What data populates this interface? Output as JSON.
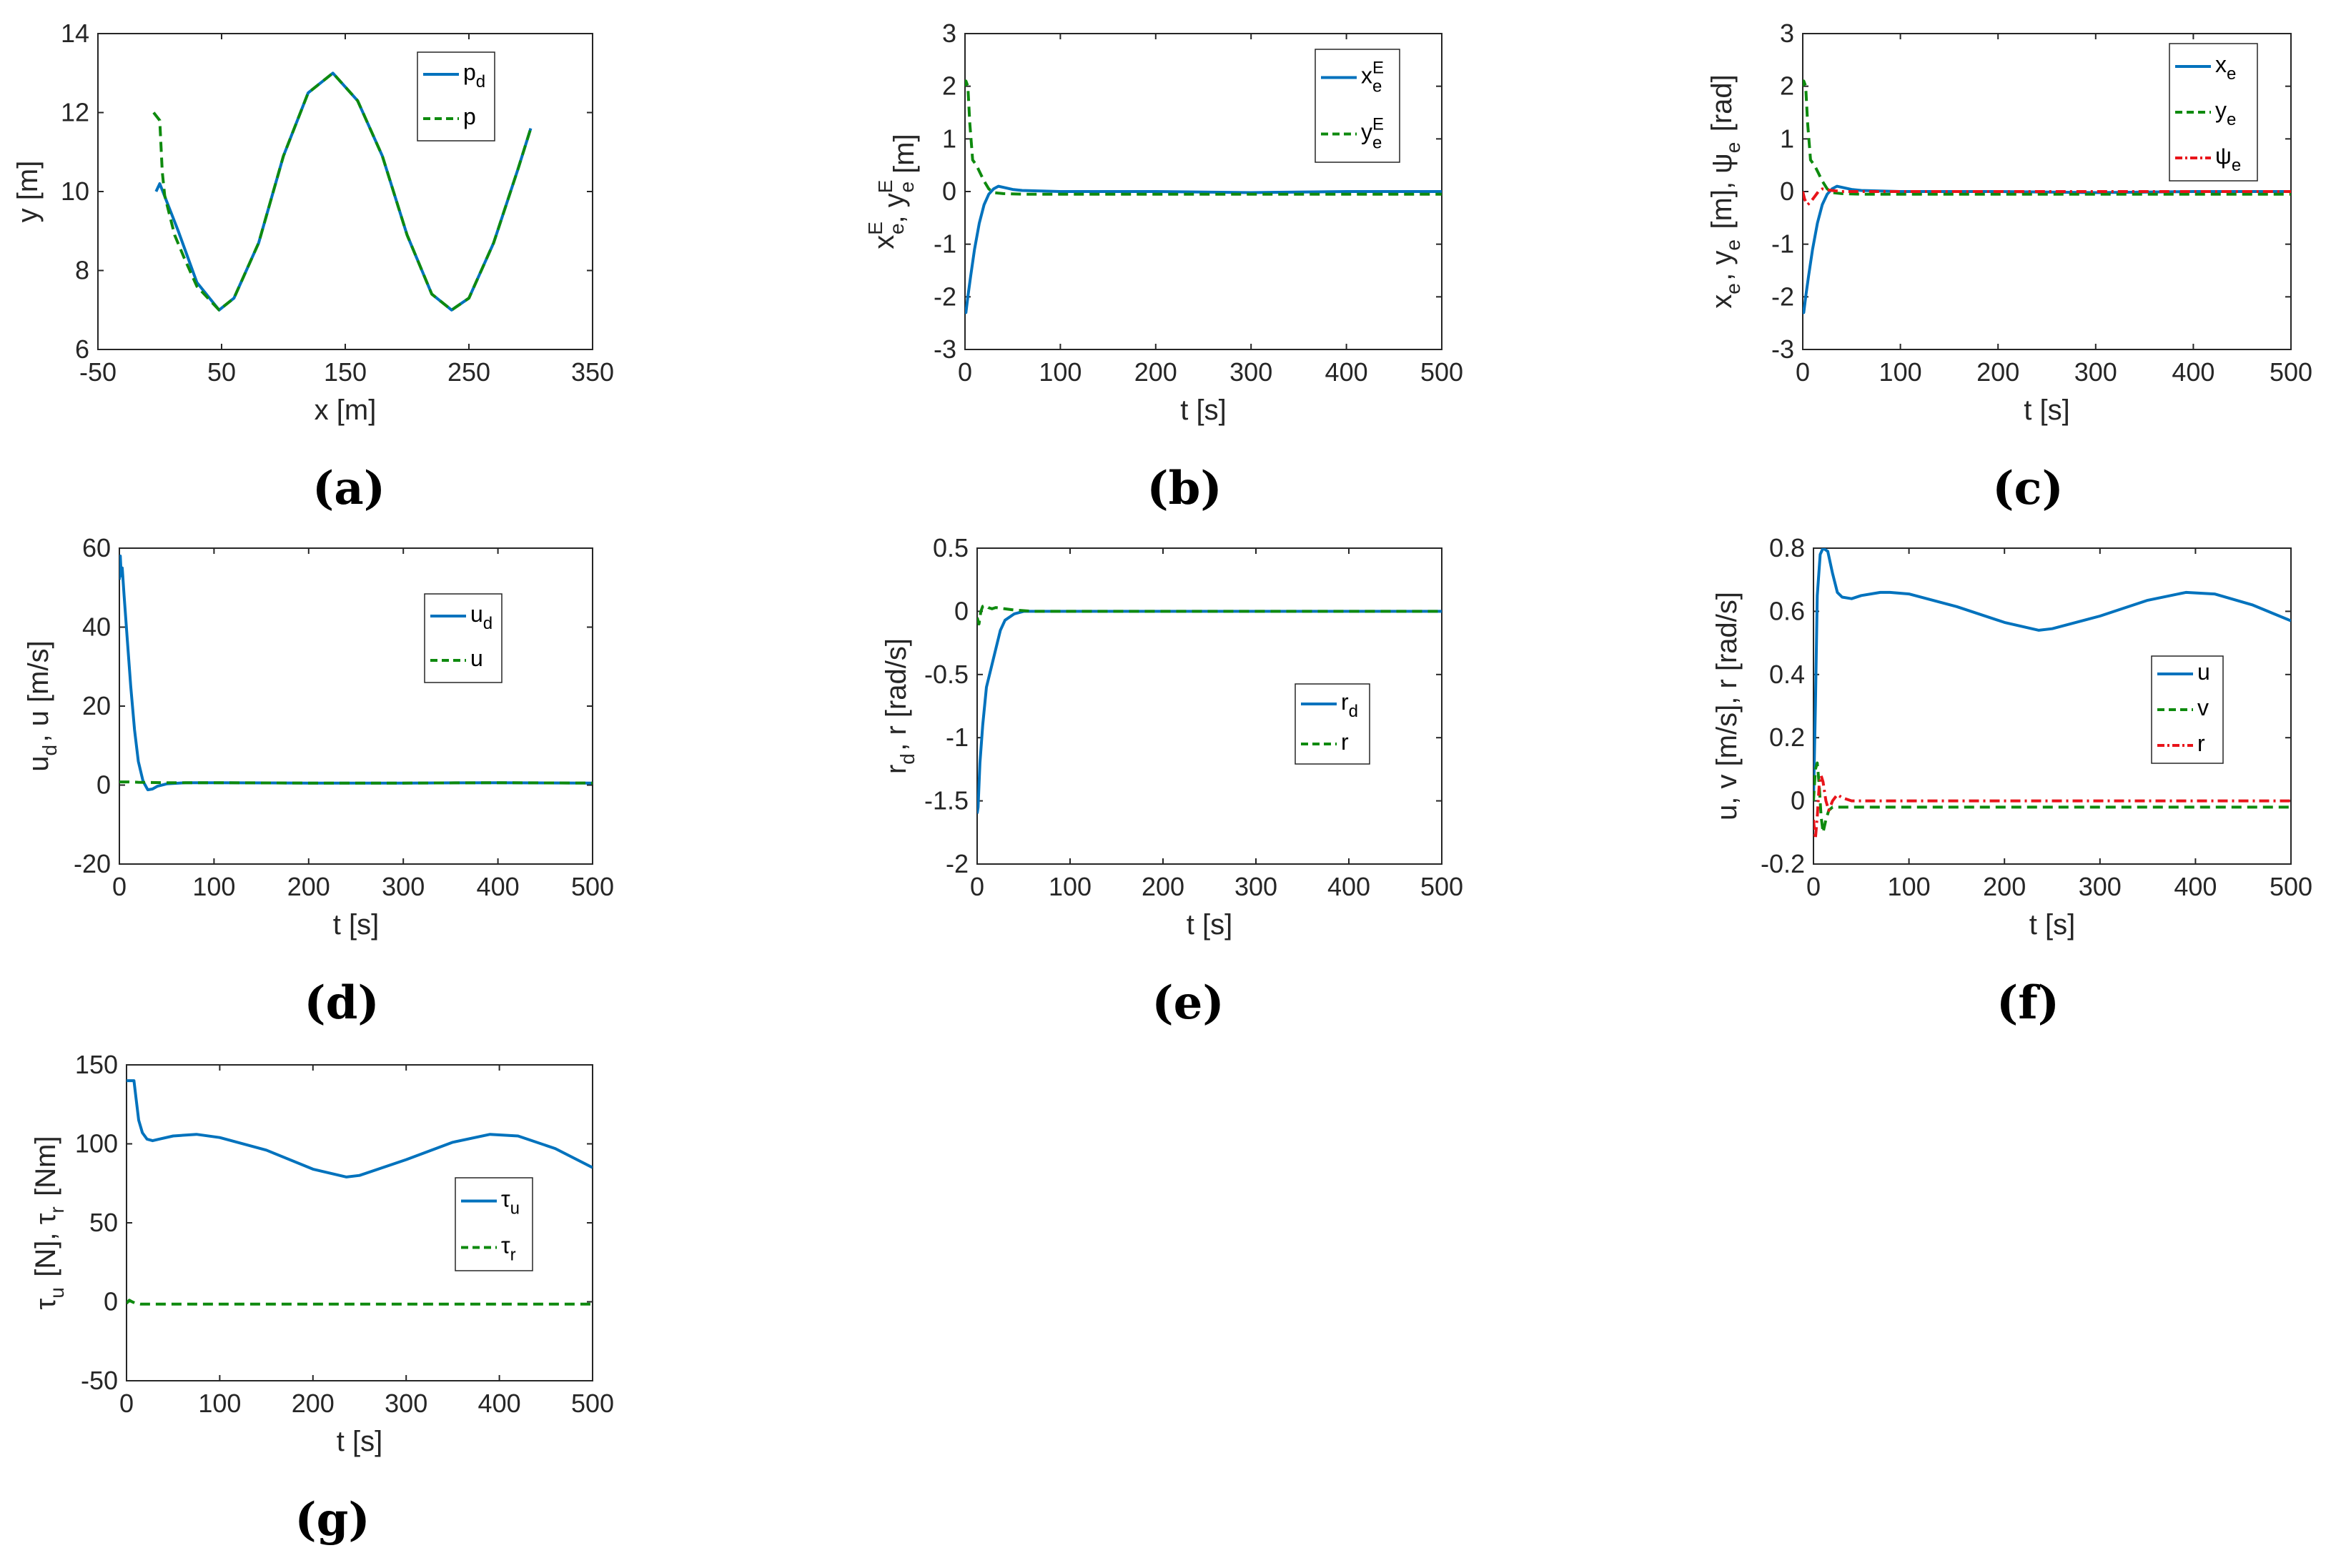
{
  "figure": {
    "panel_letters": [
      "(a)",
      "(b)",
      "(c)",
      "(d)",
      "(e)",
      "(f)",
      "(g)"
    ]
  },
  "colors": {
    "blue": "#0072BD",
    "green": "#0E8A0E",
    "red": "#E8141A",
    "axis": "#262626"
  },
  "chart_data": [
    {
      "id": "a",
      "type": "line",
      "letter": "(a)",
      "xlabel": "x [m]",
      "ylabel": "y [m]",
      "xlim": [
        -50,
        350
      ],
      "ylim": [
        6,
        14
      ],
      "xticks": [
        -50,
        50,
        150,
        250,
        350
      ],
      "xtick_labels": [
        "-50",
        "50",
        "150",
        "250",
        "350"
      ],
      "yticks": [
        6,
        8,
        10,
        12,
        14
      ],
      "ytick_labels": [
        "6",
        "8",
        "10",
        "12",
        "14"
      ],
      "legend_position": "top-right",
      "series": [
        {
          "name": "p_d",
          "legend_main": "p",
          "legend_sub": "d",
          "style": "solid",
          "color": "blue",
          "x": [
            -3,
            0,
            15,
            30,
            48,
            60,
            80,
            100,
            120,
            140,
            160,
            180,
            200,
            220,
            236,
            250,
            270,
            290,
            300
          ],
          "y": [
            10.0,
            10.2,
            9.0,
            7.7,
            7.0,
            7.3,
            8.7,
            10.9,
            12.5,
            13.0,
            12.3,
            10.9,
            8.9,
            7.4,
            7.0,
            7.3,
            8.7,
            10.6,
            11.6
          ]
        },
        {
          "name": "p",
          "legend_main": "p",
          "legend_sub": "",
          "style": "dashed",
          "color": "green",
          "x": [
            -5,
            0,
            2,
            4,
            8,
            12,
            20,
            30,
            48,
            60,
            80,
            100,
            120,
            140,
            160,
            180,
            200,
            220,
            236,
            250,
            270,
            290,
            300
          ],
          "y": [
            12.0,
            11.8,
            10.5,
            9.9,
            9.4,
            8.9,
            8.3,
            7.6,
            7.0,
            7.3,
            8.7,
            10.9,
            12.5,
            13.0,
            12.3,
            10.9,
            8.9,
            7.4,
            7.0,
            7.3,
            8.7,
            10.6,
            11.6
          ]
        }
      ]
    },
    {
      "id": "b",
      "type": "line",
      "letter": "(b)",
      "xlabel": "t [s]",
      "ylabel_parts": [
        [
          "x",
          "E",
          "e"
        ],
        [
          ", ",
          "",
          ""
        ],
        [
          "y",
          "E",
          "e"
        ],
        [
          " [m]",
          "",
          ""
        ]
      ],
      "xlim": [
        0,
        500
      ],
      "ylim": [
        -3,
        3
      ],
      "xticks": [
        0,
        100,
        200,
        300,
        400,
        500
      ],
      "xtick_labels": [
        "0",
        "100",
        "200",
        "300",
        "400",
        "500"
      ],
      "yticks": [
        -3,
        -2,
        -1,
        0,
        1,
        2,
        3
      ],
      "ytick_labels": [
        "-3",
        "-2",
        "-1",
        "0",
        "1",
        "2",
        "3"
      ],
      "legend_position": "top-right",
      "series": [
        {
          "name": "x_e^E",
          "legend_main": "x",
          "legend_sub": "e",
          "legend_sup": "E",
          "style": "solid",
          "color": "blue",
          "x": [
            0,
            1,
            3,
            6,
            10,
            15,
            20,
            25,
            30,
            35,
            40,
            50,
            60,
            100,
            200,
            300,
            400,
            500
          ],
          "y": [
            -2.2,
            -2.3,
            -2.0,
            -1.6,
            -1.1,
            -0.6,
            -0.25,
            -0.05,
            0.05,
            0.1,
            0.08,
            0.04,
            0.02,
            0.0,
            0.0,
            -0.02,
            0.0,
            0.0
          ]
        },
        {
          "name": "y_e^E",
          "legend_main": "y",
          "legend_sub": "e",
          "legend_sup": "E",
          "style": "dashed",
          "color": "green",
          "x": [
            0,
            1,
            3,
            5,
            8,
            12,
            16,
            20,
            25,
            30,
            40,
            60,
            100,
            200,
            300,
            400,
            500
          ],
          "y": [
            2.0,
            2.1,
            2.0,
            1.3,
            0.6,
            0.5,
            0.35,
            0.2,
            0.05,
            -0.02,
            -0.04,
            -0.05,
            -0.05,
            -0.05,
            -0.05,
            -0.05,
            -0.05
          ]
        }
      ]
    },
    {
      "id": "c",
      "type": "line",
      "letter": "(c)",
      "xlabel": "t [s]",
      "ylabel_parts": [
        [
          "x",
          "",
          "e"
        ],
        [
          ", ",
          "",
          ""
        ],
        [
          "y",
          "",
          "e"
        ],
        [
          " [m], ",
          "",
          ""
        ],
        [
          "ψ",
          "",
          "e"
        ],
        [
          " [rad]",
          "",
          ""
        ]
      ],
      "xlim": [
        0,
        500
      ],
      "ylim": [
        -3,
        3
      ],
      "xticks": [
        0,
        100,
        200,
        300,
        400,
        500
      ],
      "xtick_labels": [
        "0",
        "100",
        "200",
        "300",
        "400",
        "500"
      ],
      "yticks": [
        -3,
        -2,
        -1,
        0,
        1,
        2,
        3
      ],
      "ytick_labels": [
        "-3",
        "-2",
        "-1",
        "0",
        "1",
        "2",
        "3"
      ],
      "legend_position": "top-right",
      "series": [
        {
          "name": "x_e",
          "legend_main": "x",
          "legend_sub": "e",
          "style": "solid",
          "color": "blue",
          "x": [
            0,
            1,
            3,
            6,
            10,
            15,
            20,
            25,
            30,
            35,
            40,
            50,
            60,
            100,
            200,
            300,
            400,
            500
          ],
          "y": [
            -2.2,
            -2.3,
            -2.0,
            -1.6,
            -1.1,
            -0.6,
            -0.25,
            -0.05,
            0.05,
            0.1,
            0.08,
            0.04,
            0.02,
            0.0,
            0.0,
            -0.02,
            0.0,
            0.0
          ]
        },
        {
          "name": "y_e",
          "legend_main": "y",
          "legend_sub": "e",
          "style": "dashed",
          "color": "green",
          "x": [
            0,
            1,
            3,
            5,
            8,
            12,
            16,
            20,
            25,
            30,
            40,
            60,
            100,
            200,
            300,
            400,
            500
          ],
          "y": [
            2.0,
            2.1,
            2.0,
            1.3,
            0.6,
            0.5,
            0.35,
            0.2,
            0.05,
            -0.02,
            -0.04,
            -0.05,
            -0.05,
            -0.05,
            -0.05,
            -0.05,
            -0.05
          ]
        },
        {
          "name": "ψ_e",
          "legend_main": "ψ",
          "legend_sub": "e",
          "style": "dashdot",
          "color": "red",
          "x": [
            0,
            2,
            5,
            8,
            12,
            16,
            20,
            25,
            30,
            40,
            60,
            100,
            200,
            300,
            400,
            500
          ],
          "y": [
            0.0,
            -0.15,
            -0.25,
            -0.2,
            -0.1,
            0.0,
            0.05,
            0.03,
            0.02,
            0.0,
            0.0,
            0.0,
            0.0,
            0.0,
            0.0,
            0.0
          ]
        }
      ]
    },
    {
      "id": "d",
      "type": "line",
      "letter": "(d)",
      "xlabel": "t [s]",
      "ylabel_parts": [
        [
          "u",
          "",
          "d"
        ],
        [
          ", u [m/s]",
          "",
          ""
        ]
      ],
      "xlim": [
        0,
        500
      ],
      "ylim": [
        -20,
        60
      ],
      "xticks": [
        0,
        100,
        200,
        300,
        400,
        500
      ],
      "xtick_labels": [
        "0",
        "100",
        "200",
        "300",
        "400",
        "500"
      ],
      "yticks": [
        -20,
        0,
        20,
        40,
        60
      ],
      "ytick_labels": [
        "-20",
        "0",
        "20",
        "40",
        "60"
      ],
      "legend_position": "top-right",
      "series": [
        {
          "name": "u_d",
          "legend_main": "u",
          "legend_sub": "d",
          "style": "solid",
          "color": "blue",
          "x": [
            0,
            1,
            2,
            3,
            5,
            8,
            12,
            16,
            20,
            25,
            30,
            35,
            40,
            50,
            70,
            100,
            200,
            300,
            400,
            500
          ],
          "y": [
            52,
            58,
            53,
            55,
            48,
            38,
            25,
            14,
            6,
            1,
            -1.2,
            -1,
            -0.3,
            0.3,
            0.6,
            0.6,
            0.5,
            0.5,
            0.6,
            0.5
          ]
        },
        {
          "name": "u",
          "legend_main": "u",
          "legend_sub": "",
          "style": "dashed",
          "color": "green",
          "x": [
            0,
            10,
            20,
            50,
            100,
            200,
            300,
            400,
            500
          ],
          "y": [
            0.8,
            0.8,
            0.7,
            0.6,
            0.6,
            0.5,
            0.5,
            0.6,
            0.5
          ]
        }
      ]
    },
    {
      "id": "e",
      "type": "line",
      "letter": "(e)",
      "xlabel": "t [s]",
      "ylabel_parts": [
        [
          "r",
          "",
          "d"
        ],
        [
          ", r [rad/s]",
          "",
          ""
        ]
      ],
      "xlim": [
        0,
        500
      ],
      "ylim": [
        -2,
        0.5
      ],
      "xticks": [
        0,
        100,
        200,
        300,
        400,
        500
      ],
      "xtick_labels": [
        "0",
        "100",
        "200",
        "300",
        "400",
        "500"
      ],
      "yticks": [
        -2,
        -1.5,
        -1,
        -0.5,
        0,
        0.5
      ],
      "ytick_labels": [
        "-2",
        "-1.5",
        "-1",
        "-0.5",
        "0",
        "0.5"
      ],
      "legend_position": "right",
      "series": [
        {
          "name": "r_d",
          "legend_main": "r",
          "legend_sub": "d",
          "style": "solid",
          "color": "blue",
          "x": [
            0,
            1,
            3,
            6,
            10,
            15,
            20,
            25,
            30,
            40,
            50,
            60,
            100,
            200,
            300,
            400,
            500
          ],
          "y": [
            -1.6,
            -1.55,
            -1.2,
            -0.9,
            -0.6,
            -0.45,
            -0.3,
            -0.15,
            -0.07,
            -0.02,
            0.0,
            0.0,
            0.0,
            0.0,
            0.0,
            0.0,
            0.0
          ]
        },
        {
          "name": "r",
          "legend_main": "r",
          "legend_sub": "",
          "style": "dashed",
          "color": "green",
          "x": [
            0,
            2,
            4,
            6,
            9,
            12,
            16,
            20,
            30,
            40,
            60,
            100,
            200,
            300,
            400,
            500
          ],
          "y": [
            -0.05,
            -0.1,
            0.0,
            0.04,
            0.05,
            0.03,
            0.02,
            0.03,
            0.02,
            0.01,
            0.0,
            0.0,
            0.0,
            0.0,
            0.0,
            0.0
          ]
        }
      ]
    },
    {
      "id": "f",
      "type": "line",
      "letter": "(f)",
      "xlabel": "t [s]",
      "ylabel_parts": [
        [
          "u, v [m/s], r [rad/s]",
          "",
          ""
        ]
      ],
      "xlim": [
        0,
        500
      ],
      "ylim": [
        -0.2,
        0.8
      ],
      "xticks": [
        0,
        100,
        200,
        300,
        400,
        500
      ],
      "xtick_labels": [
        "0",
        "100",
        "200",
        "300",
        "400",
        "500"
      ],
      "yticks": [
        -0.2,
        0,
        0.2,
        0.4,
        0.6,
        0.8
      ],
      "ytick_labels": [
        "-0.2",
        "0",
        "0.2",
        "0.4",
        "0.6",
        "0.8"
      ],
      "legend_position": "right",
      "series": [
        {
          "name": "u",
          "legend_main": "u",
          "legend_sub": "",
          "style": "solid",
          "color": "blue",
          "x": [
            0,
            2,
            4,
            7,
            10,
            15,
            20,
            25,
            30,
            40,
            50,
            70,
            80,
            100,
            150,
            200,
            236,
            250,
            300,
            350,
            390,
            420,
            460,
            500
          ],
          "y": [
            0.0,
            0.3,
            0.65,
            0.78,
            0.8,
            0.79,
            0.72,
            0.66,
            0.645,
            0.64,
            0.65,
            0.66,
            0.66,
            0.655,
            0.615,
            0.565,
            0.54,
            0.545,
            0.585,
            0.635,
            0.66,
            0.655,
            0.62,
            0.57
          ]
        },
        {
          "name": "v",
          "legend_main": "v",
          "legend_sub": "",
          "style": "dashed",
          "color": "green",
          "x": [
            0,
            2,
            4,
            6,
            8,
            10,
            13,
            16,
            20,
            30,
            50,
            100,
            200,
            300,
            400,
            500
          ],
          "y": [
            0.0,
            0.1,
            0.12,
            0.05,
            -0.05,
            -0.1,
            -0.06,
            -0.03,
            -0.02,
            -0.02,
            -0.02,
            -0.02,
            -0.02,
            -0.02,
            -0.02,
            -0.02
          ]
        },
        {
          "name": "r",
          "legend_main": "r",
          "legend_sub": "",
          "style": "dashdot",
          "color": "red",
          "x": [
            0,
            2,
            4,
            6,
            8,
            10,
            13,
            16,
            20,
            25,
            30,
            40,
            60,
            100,
            200,
            300,
            400,
            500
          ],
          "y": [
            -0.06,
            -0.12,
            -0.05,
            0.05,
            0.08,
            0.06,
            0.0,
            -0.03,
            0.0,
            0.02,
            0.01,
            0.0,
            0.0,
            0.0,
            0.0,
            0.0,
            0.0,
            0.0
          ]
        }
      ]
    },
    {
      "id": "g",
      "type": "line",
      "letter": "(g)",
      "xlabel": "t [s]",
      "ylabel_parts": [
        [
          "τ",
          "",
          "u"
        ],
        [
          " [N], ",
          "",
          ""
        ],
        [
          "τ",
          "",
          "r"
        ],
        [
          " [Nm]",
          "",
          ""
        ]
      ],
      "xlim": [
        0,
        500
      ],
      "ylim": [
        -50,
        150
      ],
      "xticks": [
        0,
        100,
        200,
        300,
        400,
        500
      ],
      "xtick_labels": [
        "0",
        "100",
        "200",
        "300",
        "400",
        "500"
      ],
      "yticks": [
        -50,
        0,
        50,
        100,
        150
      ],
      "ytick_labels": [
        "-50",
        "0",
        "50",
        "100",
        "150"
      ],
      "legend_position": "right",
      "series": [
        {
          "name": "τ_u",
          "legend_main": "τ",
          "legend_sub": "u",
          "style": "solid",
          "color": "blue",
          "x": [
            0,
            8,
            10,
            13,
            17,
            22,
            28,
            35,
            50,
            75,
            100,
            150,
            200,
            236,
            250,
            300,
            350,
            390,
            420,
            460,
            500
          ],
          "y": [
            140,
            140,
            130,
            115,
            107,
            103,
            102,
            103,
            105,
            106,
            104,
            96,
            84,
            79,
            80,
            90,
            101,
            106,
            105,
            97,
            85
          ]
        },
        {
          "name": "τ_r",
          "legend_main": "τ",
          "legend_sub": "r",
          "style": "dashed",
          "color": "green",
          "x": [
            0,
            3,
            6,
            10,
            15,
            30,
            100,
            200,
            300,
            400,
            500
          ],
          "y": [
            -1,
            1,
            0,
            -1,
            -1.5,
            -1.5,
            -1.5,
            -1.5,
            -1.5,
            -1.5,
            -1.5
          ]
        }
      ]
    }
  ]
}
